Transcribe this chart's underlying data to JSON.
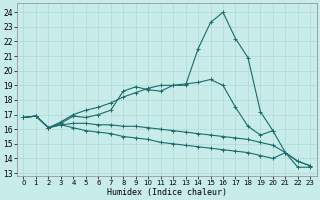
{
  "title": "",
  "xlabel": "Humidex (Indice chaleur)",
  "x_ticks": [
    0,
    1,
    2,
    3,
    4,
    5,
    6,
    7,
    8,
    9,
    10,
    11,
    12,
    13,
    14,
    15,
    16,
    17,
    18,
    19,
    20,
    21,
    22,
    23
  ],
  "y_ticks": [
    13,
    14,
    15,
    16,
    17,
    18,
    19,
    20,
    21,
    22,
    23,
    24
  ],
  "xlim": [
    -0.5,
    23.5
  ],
  "ylim": [
    12.8,
    24.6
  ],
  "bg_color": "#c8ece9",
  "line_color": "#1a6b6b",
  "grid_color": "#b0d8d4",
  "lines": [
    {
      "x": [
        0,
        1,
        2,
        3,
        4,
        5,
        6,
        7,
        8,
        9,
        10,
        11,
        12,
        13,
        14,
        15,
        16,
        17,
        18,
        19,
        20
      ],
      "y": [
        16.8,
        16.9,
        16.1,
        16.4,
        16.9,
        16.8,
        17.0,
        17.3,
        18.6,
        18.9,
        18.7,
        18.6,
        19.0,
        19.0,
        21.5,
        23.3,
        24.0,
        22.2,
        20.9,
        17.2,
        15.9
      ]
    },
    {
      "x": [
        0,
        1,
        2,
        3,
        4,
        5,
        6,
        7,
        8,
        9,
        10,
        11,
        12,
        13,
        14,
        15,
        16,
        17,
        18,
        19,
        20,
        21,
        22,
        23
      ],
      "y": [
        16.8,
        16.9,
        16.1,
        16.5,
        17.0,
        17.3,
        17.5,
        17.8,
        18.2,
        18.5,
        18.8,
        19.0,
        19.0,
        19.1,
        19.2,
        19.4,
        19.0,
        17.5,
        16.2,
        15.6,
        15.9,
        14.4,
        13.8,
        13.5
      ]
    },
    {
      "x": [
        0,
        1,
        2,
        3,
        4,
        5,
        6,
        7,
        8,
        9,
        10,
        11,
        12,
        13,
        14,
        15,
        16,
        17,
        18,
        19,
        20,
        21,
        22,
        23
      ],
      "y": [
        16.8,
        16.9,
        16.1,
        16.3,
        16.4,
        16.4,
        16.3,
        16.3,
        16.2,
        16.2,
        16.1,
        16.0,
        15.9,
        15.8,
        15.7,
        15.6,
        15.5,
        15.4,
        15.3,
        15.1,
        14.9,
        14.4,
        13.8,
        13.5
      ]
    },
    {
      "x": [
        0,
        1,
        2,
        3,
        4,
        5,
        6,
        7,
        8,
        9,
        10,
        11,
        12,
        13,
        14,
        15,
        16,
        17,
        18,
        19,
        20,
        21,
        22,
        23
      ],
      "y": [
        16.8,
        16.9,
        16.1,
        16.3,
        16.1,
        15.9,
        15.8,
        15.7,
        15.5,
        15.4,
        15.3,
        15.1,
        15.0,
        14.9,
        14.8,
        14.7,
        14.6,
        14.5,
        14.4,
        14.2,
        14.0,
        14.4,
        13.4,
        13.4
      ]
    }
  ]
}
